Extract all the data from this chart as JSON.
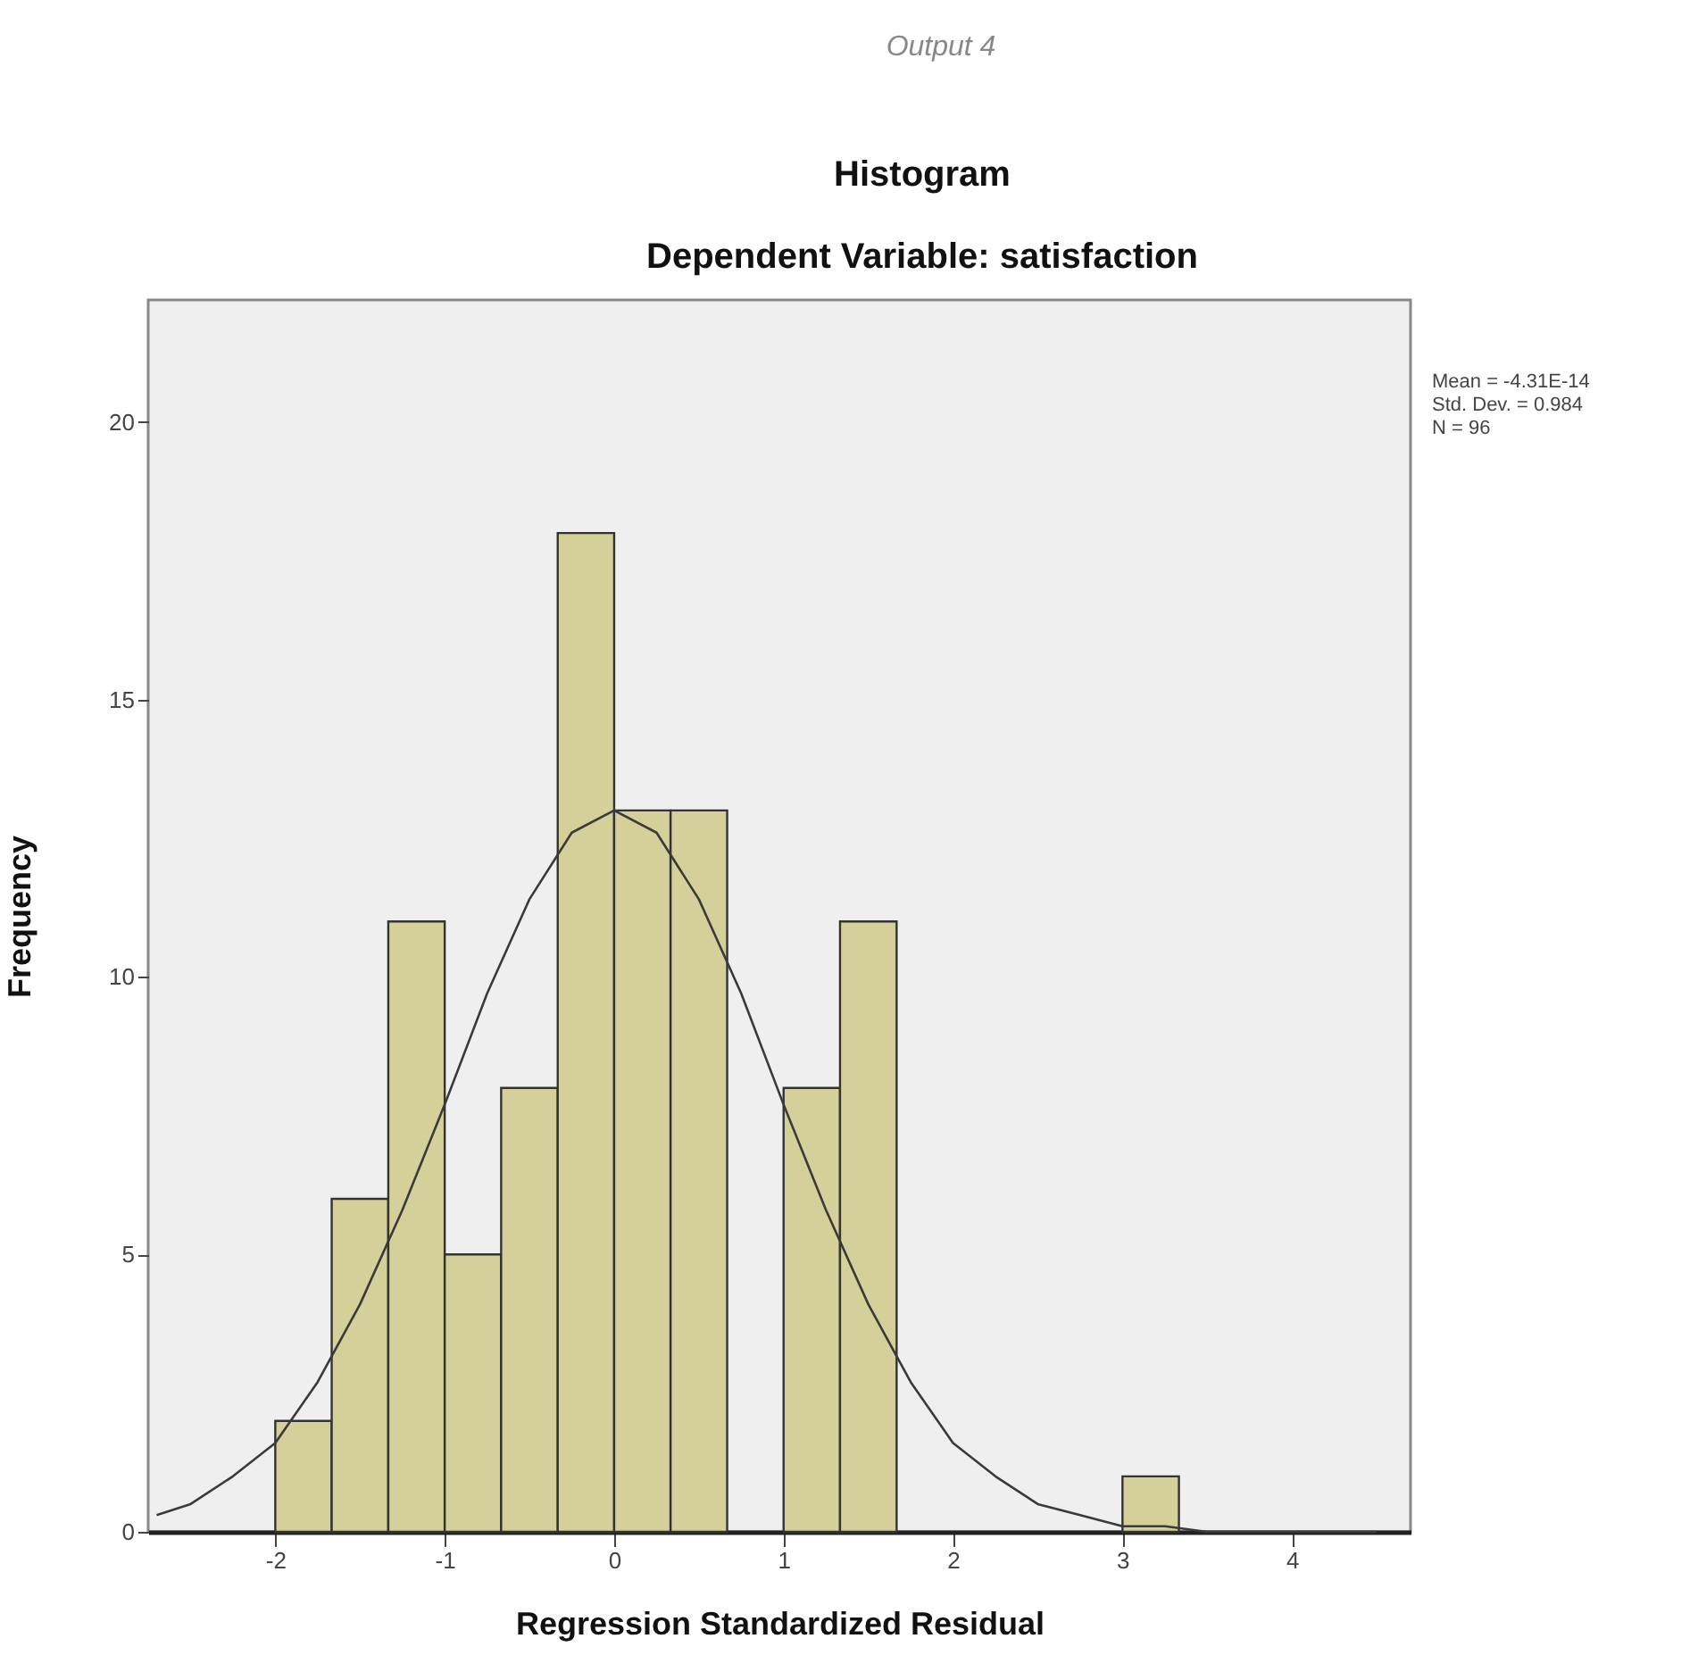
{
  "chart_data": {
    "type": "histogram",
    "title": "Histogram",
    "subtitle": "Dependent Variable: satisfaction",
    "xlabel": "Regression Standardized Residual",
    "ylabel": "Frequency",
    "annotations": [
      "Output 4",
      "Mean = -4.31E-14",
      "Std. Dev. = 0.984",
      "N = 96"
    ],
    "bins": [
      -2,
      -1.667,
      -1.333,
      -1,
      -0.667,
      -0.333,
      0,
      0.333,
      0.667,
      1,
      1.333,
      1.667,
      2,
      2.333,
      2.667,
      3,
      3.333
    ],
    "series": [
      {
        "type": "histogram",
        "color": "#d5d09a",
        "values": [
          2,
          6,
          11,
          5,
          8,
          18,
          13,
          13,
          0,
          8,
          11,
          0,
          0,
          0,
          0,
          1
        ]
      },
      {
        "type": "line",
        "color": "#3a3a3a",
        "x": [
          -2.7,
          -2.5,
          -2.25,
          -2,
          -1.75,
          -1.5,
          -1.25,
          -1,
          -0.75,
          -0.5,
          -0.25,
          0,
          0.25,
          0.5,
          0.75,
          1,
          1.25,
          1.5,
          1.75,
          2,
          2.25,
          2.5,
          2.75,
          3,
          3.25,
          3.5,
          4,
          4.5
        ],
        "values": [
          0.3,
          0.5,
          1,
          1.6,
          2.7,
          4.1,
          5.8,
          7.7,
          9.7,
          11.4,
          12.6,
          13,
          12.6,
          11.4,
          9.7,
          7.7,
          5.8,
          4.1,
          2.7,
          1.6,
          1,
          0.5,
          0.3,
          0.1,
          0.1,
          0,
          0,
          0
        ]
      }
    ],
    "xlim": [
      -2.75,
      4.7
    ],
    "xticks": [
      -2,
      -1,
      0,
      1,
      2,
      3,
      4
    ],
    "ylim": [
      0,
      22.2
    ],
    "yticks": [
      0,
      5,
      10,
      15,
      20
    ],
    "grid": false,
    "legend": false,
    "marker": "none",
    "line_style": "solid"
  }
}
